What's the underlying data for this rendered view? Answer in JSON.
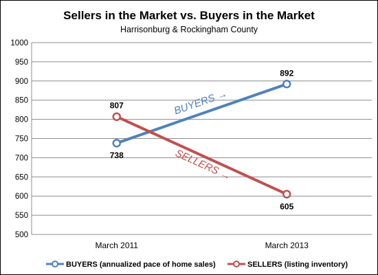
{
  "chart_data": {
    "type": "line",
    "title": "Sellers in the Market  vs.  Buyers in the Market",
    "subtitle": "Harrisonburg  & Rockingham  County",
    "categories": [
      "March 2011",
      "March 2013"
    ],
    "ylim": [
      500,
      1000
    ],
    "yticks": [
      500,
      550,
      600,
      650,
      700,
      750,
      800,
      850,
      900,
      950,
      1000
    ],
    "ytick_labels": [
      "500",
      "550",
      "600",
      "650",
      "700",
      "750",
      "800",
      "850",
      "900",
      "950",
      "1000"
    ],
    "grid": true,
    "legend_position": "bottom",
    "series": [
      {
        "name": "BUYERS (annualized pace of home sales)",
        "values": [
          738,
          892
        ],
        "labels": [
          "738",
          "892"
        ],
        "color": "#4F81BD",
        "annotation": "BUYERS →"
      },
      {
        "name": "SELLERS (listing inventory)",
        "values": [
          807,
          605
        ],
        "labels": [
          "807",
          "605"
        ],
        "color": "#C0504D",
        "annotation": "SELLERS →"
      }
    ]
  }
}
